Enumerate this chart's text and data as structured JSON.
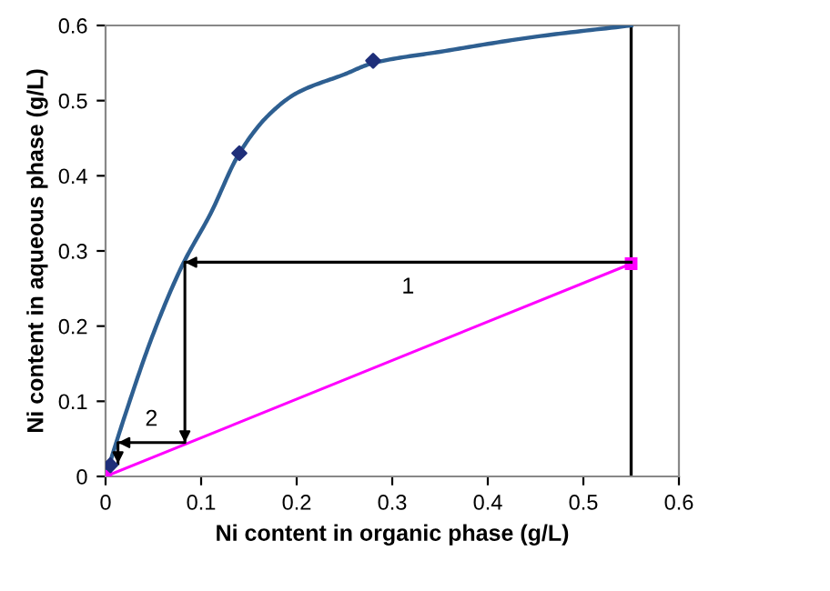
{
  "chart_data": {
    "type": "line",
    "xlabel": "Ni content in organic phase (g/L)",
    "ylabel": "Ni content in aqueous phase (g/L)",
    "xlim": [
      0,
      0.6
    ],
    "ylim": [
      0,
      0.6
    ],
    "xticks": [
      0,
      0.1,
      0.2,
      0.3,
      0.4,
      0.5,
      0.6
    ],
    "yticks": [
      0,
      0.1,
      0.2,
      0.3,
      0.4,
      0.5,
      0.6
    ],
    "grid": false,
    "legend": false,
    "series": [
      {
        "color": "#2e5f91",
        "marker": "none",
        "x": [
          0,
          0.005,
          0.02,
          0.05,
          0.08,
          0.11,
          0.14,
          0.17,
          0.2,
          0.25,
          0.28,
          0.35,
          0.45,
          0.55
        ],
        "values": [
          0,
          0.02,
          0.08,
          0.19,
          0.28,
          0.35,
          0.43,
          0.48,
          0.51,
          0.535,
          0.55,
          0.565,
          0.585,
          0.6
        ]
      },
      {
        "type": "scatter",
        "color": "#1f2f7a",
        "marker": "diamond",
        "x": [
          0.005,
          0.14,
          0.28
        ],
        "values": [
          0.015,
          0.43,
          0.553
        ]
      },
      {
        "color": "#ff00ff",
        "marker": "square",
        "x": [
          0,
          0.55
        ],
        "values": [
          0,
          0.283
        ]
      },
      {
        "color": "#000000",
        "marker": "none",
        "x": [
          0.55,
          0.083,
          0.083,
          0.013,
          0.013
        ],
        "values": [
          0.285,
          0.285,
          0.045,
          0.045,
          0.017
        ]
      }
    ],
    "ref_lines": [
      {
        "axis": "x",
        "value": 0.55,
        "color": "#000000"
      }
    ],
    "annotations": [
      "1",
      "2"
    ]
  }
}
